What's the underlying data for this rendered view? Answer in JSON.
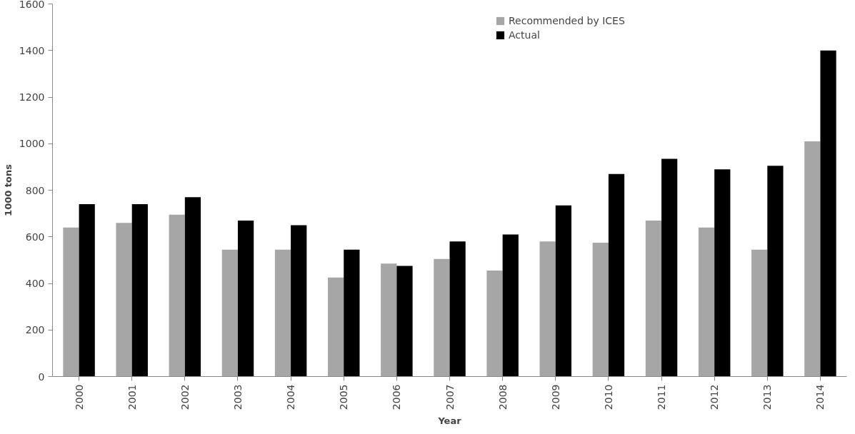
{
  "chart_data": {
    "type": "bar",
    "xlabel": "Year",
    "ylabel": "1000 tons",
    "categories": [
      "2000",
      "2001",
      "2002",
      "2003",
      "2004",
      "2005",
      "2006",
      "2007",
      "2008",
      "2009",
      "2010",
      "2011",
      "2012",
      "2013",
      "2014"
    ],
    "series": [
      {
        "name": "Recommended by ICES",
        "color": "#a6a6a6",
        "values": [
          640,
          660,
          695,
          545,
          545,
          425,
          485,
          505,
          455,
          580,
          575,
          670,
          640,
          545,
          1010
        ]
      },
      {
        "name": "Actual",
        "color": "#000000",
        "values": [
          740,
          740,
          770,
          670,
          650,
          545,
          475,
          580,
          610,
          735,
          870,
          935,
          890,
          905,
          1400
        ]
      }
    ],
    "ylim": [
      0,
      1600
    ],
    "yticks": [
      0,
      200,
      400,
      600,
      800,
      1000,
      1200,
      1400,
      1600
    ],
    "grid": false,
    "legend": "top right"
  }
}
